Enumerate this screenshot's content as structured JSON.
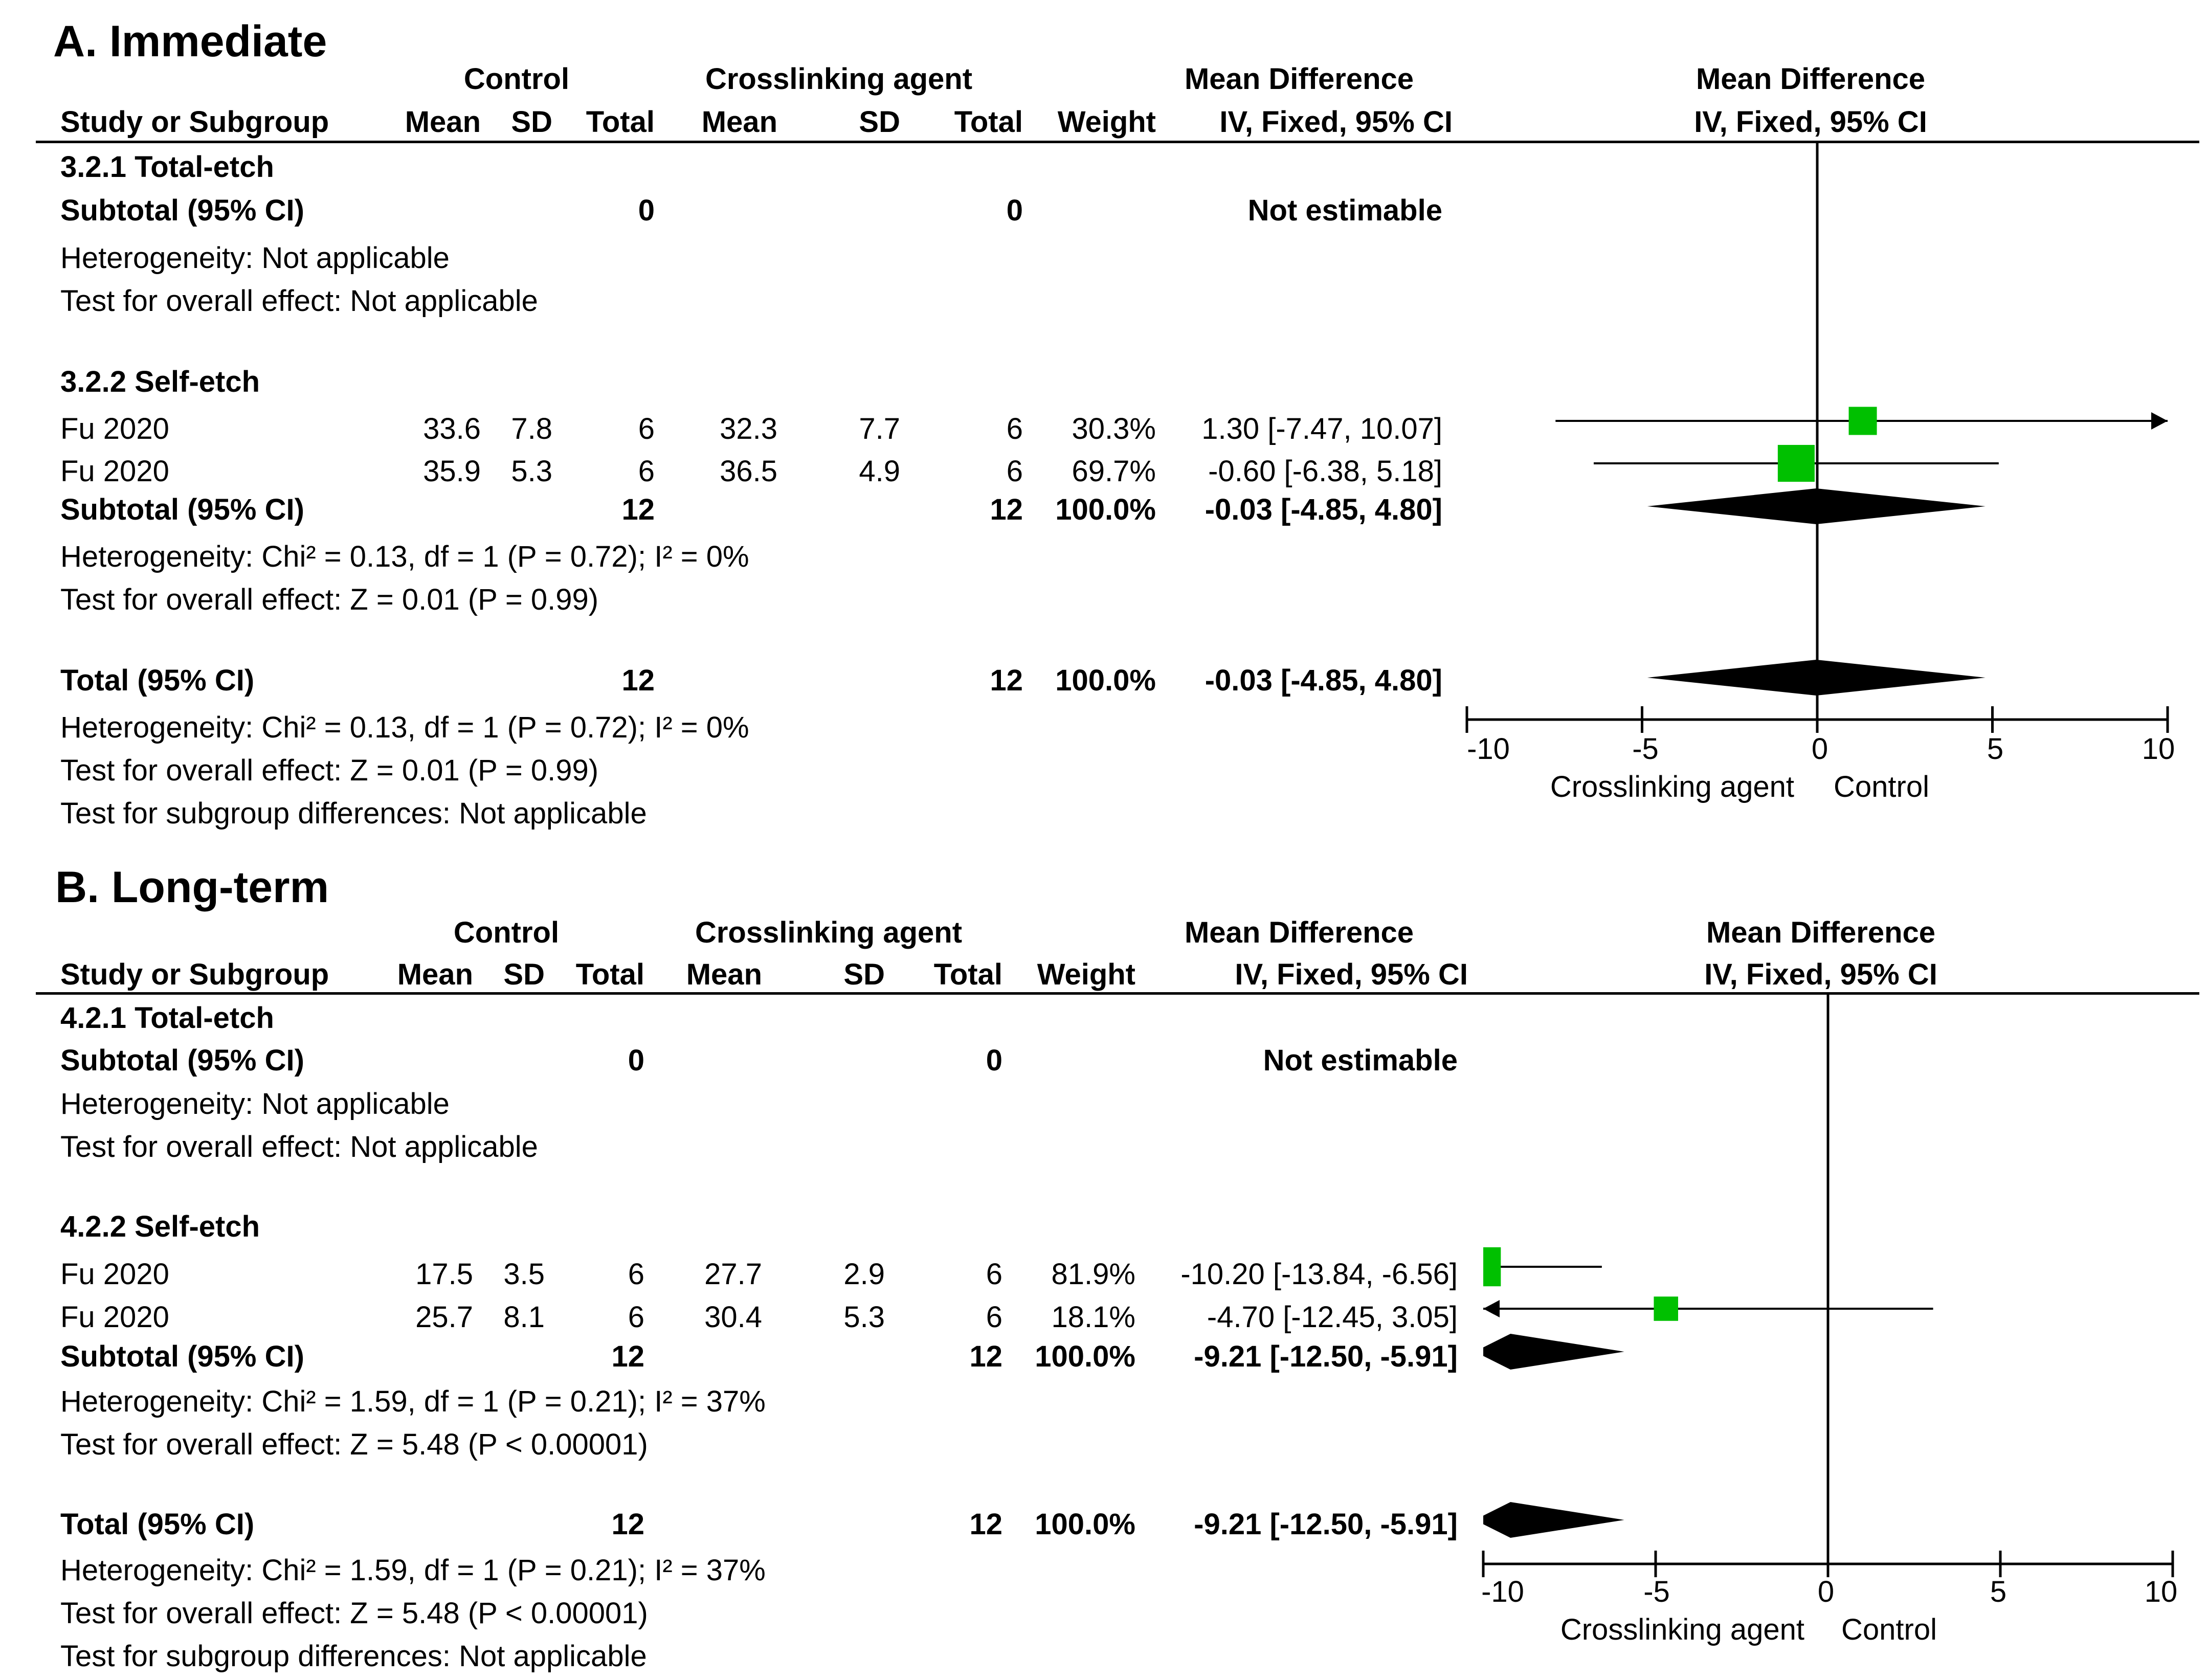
{
  "chart_data": [
    {
      "type": "forest",
      "panel_title": "A. Immediate",
      "columns": {
        "control": "Control",
        "treatment": "Crosslinking agent",
        "effect_group": "Mean Difference",
        "study": "Study or Subgroup",
        "mean": "Mean",
        "sd": "SD",
        "total": "Total",
        "weight": "Weight",
        "method": "IV, Fixed, 95% CI"
      },
      "rows": {
        "g1_label": "3.2.1 Total-etch",
        "g1_subtotal": {
          "label": "Subtotal (95% CI)",
          "n_c": "0",
          "n_t": "0",
          "effect": "Not estimable"
        },
        "g1_het": "Heterogeneity: Not applicable",
        "g1_test": "Test for overall effect: Not applicable",
        "g2_label": "3.2.2 Self-etch",
        "studies": [
          {
            "name": "Fu 2020",
            "mean_c": "33.6",
            "sd_c": "7.8",
            "n_c": "6",
            "mean_t": "32.3",
            "sd_t": "7.7",
            "n_t": "6",
            "weight": "30.3%",
            "ci_text": "1.30 [-7.47, 10.07]",
            "md": 1.3,
            "lo": -7.47,
            "hi": 10.07
          },
          {
            "name": "Fu 2020",
            "mean_c": "35.9",
            "sd_c": "5.3",
            "n_c": "6",
            "mean_t": "36.5",
            "sd_t": "4.9",
            "n_t": "6",
            "weight": "69.7%",
            "ci_text": "-0.60 [-6.38, 5.18]",
            "md": -0.6,
            "lo": -6.38,
            "hi": 5.18
          }
        ],
        "g2_subtotal": {
          "label": "Subtotal (95% CI)",
          "n_c": "12",
          "n_t": "12",
          "weight": "100.0%",
          "ci_text": "-0.03 [-4.85, 4.80]",
          "md": -0.03,
          "lo": -4.85,
          "hi": 4.8
        },
        "g2_het": "Heterogeneity: Chi² = 0.13, df = 1 (P = 0.72); I² = 0%",
        "g2_test": "Test for overall effect: Z = 0.01 (P = 0.99)",
        "total": {
          "label": "Total (95% CI)",
          "n_c": "12",
          "n_t": "12",
          "weight": "100.0%",
          "ci_text": "-0.03 [-4.85, 4.80]",
          "md": -0.03,
          "lo": -4.85,
          "hi": 4.8
        },
        "total_het": "Heterogeneity: Chi² = 0.13, df = 1 (P = 0.72); I² = 0%",
        "total_test": "Test for overall effect: Z = 0.01 (P = 0.99)",
        "subgroup_test": "Test for subgroup differences: Not applicable"
      },
      "axis": {
        "xlim": [
          -10,
          10
        ],
        "ticks": [
          -10,
          -5,
          0,
          5,
          10
        ],
        "tick_labels": [
          "-10",
          "-5",
          "0",
          "5",
          "10"
        ],
        "left_label": "Crosslinking agent",
        "right_label": "Control"
      }
    },
    {
      "type": "forest",
      "panel_title": "B. Long-term",
      "columns": {
        "control": "Control",
        "treatment": "Crosslinking agent",
        "effect_group": "Mean Difference",
        "study": "Study or Subgroup",
        "mean": "Mean",
        "sd": "SD",
        "total": "Total",
        "weight": "Weight",
        "method": "IV, Fixed, 95% CI"
      },
      "rows": {
        "g1_label": "4.2.1 Total-etch",
        "g1_subtotal": {
          "label": "Subtotal (95% CI)",
          "n_c": "0",
          "n_t": "0",
          "effect": "Not estimable"
        },
        "g1_het": "Heterogeneity: Not applicable",
        "g1_test": "Test for overall effect: Not applicable",
        "g2_label": "4.2.2 Self-etch",
        "studies": [
          {
            "name": "Fu 2020",
            "mean_c": "17.5",
            "sd_c": "3.5",
            "n_c": "6",
            "mean_t": "27.7",
            "sd_t": "2.9",
            "n_t": "6",
            "weight": "81.9%",
            "ci_text": "-10.20 [-13.84, -6.56]",
            "md": -10.2,
            "lo": -13.84,
            "hi": -6.56
          },
          {
            "name": "Fu 2020",
            "mean_c": "25.7",
            "sd_c": "8.1",
            "n_c": "6",
            "mean_t": "30.4",
            "sd_t": "5.3",
            "n_t": "6",
            "weight": "18.1%",
            "ci_text": "-4.70 [-12.45, 3.05]",
            "md": -4.7,
            "lo": -12.45,
            "hi": 3.05
          }
        ],
        "g2_subtotal": {
          "label": "Subtotal (95% CI)",
          "n_c": "12",
          "n_t": "12",
          "weight": "100.0%",
          "ci_text": "-9.21 [-12.50, -5.91]",
          "md": -9.21,
          "lo": -12.5,
          "hi": -5.91
        },
        "g2_het": "Heterogeneity: Chi² = 1.59, df = 1 (P = 0.21); I² = 37%",
        "g2_test": "Test for overall effect: Z = 5.48 (P < 0.00001)",
        "total": {
          "label": "Total (95% CI)",
          "n_c": "12",
          "n_t": "12",
          "weight": "100.0%",
          "ci_text": "-9.21 [-12.50, -5.91]",
          "md": -9.21,
          "lo": -12.5,
          "hi": -5.91
        },
        "total_het": "Heterogeneity: Chi² = 1.59, df = 1 (P = 0.21); I² = 37%",
        "total_test": "Test for overall effect: Z = 5.48 (P < 0.00001)",
        "subgroup_test": "Test for subgroup differences: Not applicable"
      },
      "axis": {
        "xlim": [
          -10,
          10
        ],
        "ticks": [
          -10,
          -5,
          0,
          5,
          10
        ],
        "tick_labels": [
          "-10",
          "-5",
          "0",
          "5",
          "10"
        ],
        "left_label": "Crosslinking agent",
        "right_label": "Control"
      }
    }
  ],
  "colors": {
    "study_marker": "#00c000",
    "diamond": "#000000",
    "line": "#000000"
  }
}
